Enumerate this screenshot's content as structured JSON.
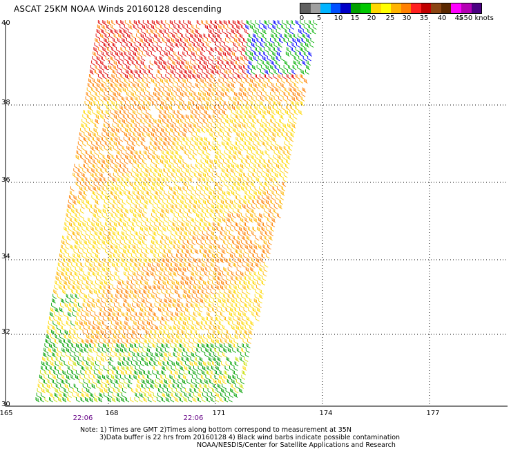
{
  "title": "ASCAT 25KM NOAA Winds 20160128 descending",
  "legend": {
    "labels": [
      "0",
      "5",
      "10",
      "15",
      "20",
      "25",
      "30",
      "35",
      "40",
      "45",
      ">50 knots"
    ],
    "colors": [
      "#606060",
      "#a0a0a0",
      "#00b4ff",
      "#0050ff",
      "#0000c8",
      "#00a000",
      "#00c800",
      "#ffd800",
      "#ffff00",
      "#ffb400",
      "#ff8000",
      "#ff2020",
      "#c00000",
      "#8b4513",
      "#5a2800",
      "#ff00ff",
      "#b400b4",
      "#4b0082"
    ]
  },
  "axes": {
    "lat_labels": [
      "40",
      "38",
      "36",
      "34",
      "32",
      "30"
    ],
    "lon_labels": [
      "165",
      "168",
      "171",
      "174",
      "177"
    ]
  },
  "times": [
    "22:06",
    "22:06"
  ],
  "footnote": {
    "line1": "Note: 1) Times are GMT 2)Times along bottom correspond to measurement at 35N",
    "line2": "3)Data buffer is 22 hrs from 20160128 4) Black wind barbs indicate possible contamination",
    "line3": "NOAA/NESDIS/Center for Satellite Applications and Research"
  }
}
